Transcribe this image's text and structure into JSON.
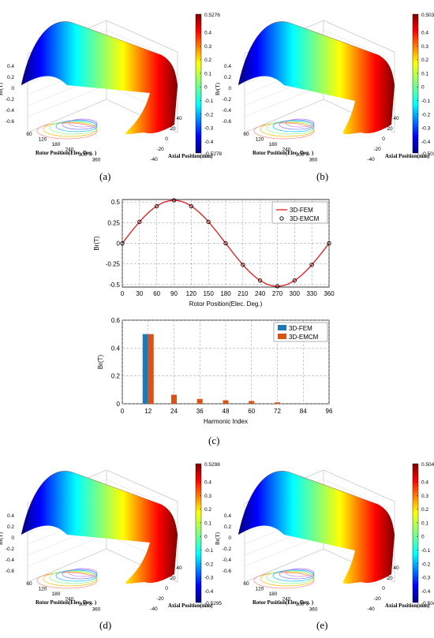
{
  "colors": {
    "fem": "#e41a1c",
    "fem_bar": "#1f77b4",
    "emcm_bar": "#d95319",
    "grid": "#999999"
  },
  "panels": {
    "a": {
      "label": "(a)",
      "cbar_max": "0.5276",
      "cbar_min": "-0.5278"
    },
    "b": {
      "label": "(b)",
      "cbar_max": "0.5039",
      "cbar_min": "-0.5039"
    },
    "c": {
      "label": "(c)"
    },
    "d": {
      "label": "(d)",
      "cbar_max": "0.5298",
      "cbar_min": "-0.5295"
    },
    "e": {
      "label": "(e)",
      "cbar_max": "0.5041",
      "cbar_min": "-0.5041"
    }
  },
  "surface_common": {
    "zlabel": "Br(T)",
    "xlabel": "Rotor Position(Elec. Deg. )",
    "ylabel": "Axial Position(mm)",
    "z_ticks": [
      "0.4",
      "0.2",
      "0",
      "-0.2",
      "-0.4",
      "-0.6"
    ],
    "x_ticks": [
      "60",
      "120",
      "180",
      "240",
      "300",
      "360"
    ],
    "y_ticks": [
      "-40",
      "-20",
      "0",
      "20",
      "40"
    ],
    "cbar_ticks": [
      "0.4",
      "0.3",
      "0.2",
      "0.1",
      "0",
      "-0.1",
      "-0.2",
      "-0.3",
      "-0.4"
    ]
  },
  "chart_data": [
    {
      "type": "line",
      "xlabel": "Rotor Position(Elec. Deg.)",
      "ylabel": "Br(T)",
      "xlim": [
        0,
        360
      ],
      "ylim": [
        -0.53,
        0.53
      ],
      "x_ticks": [
        0,
        30,
        60,
        90,
        120,
        150,
        180,
        210,
        240,
        270,
        300,
        330,
        360
      ],
      "y_ticks": [
        -0.5,
        -0.25,
        0,
        0.25,
        0.5
      ],
      "y_tick_labels": [
        "-0.5",
        "-0.25",
        "0",
        "0.25",
        "0.5"
      ],
      "grid": true,
      "legend": "top-right",
      "series": [
        {
          "name": "3D-FEM",
          "style": "line",
          "amplitude": 0.52
        },
        {
          "name": "3D-EMCM",
          "style": "markers",
          "x": [
            0,
            30,
            60,
            90,
            120,
            150,
            180,
            210,
            240,
            270,
            300,
            330,
            360
          ],
          "y": [
            0,
            0.26,
            0.45,
            0.52,
            0.45,
            0.26,
            0,
            -0.26,
            -0.45,
            -0.52,
            -0.45,
            -0.26,
            0
          ]
        }
      ]
    },
    {
      "type": "bar",
      "xlabel": "Harmonic Index",
      "ylabel": "Br(T)",
      "xlim": [
        0,
        96
      ],
      "ylim": [
        0,
        0.6
      ],
      "x_ticks": [
        0,
        12,
        24,
        36,
        48,
        60,
        72,
        84,
        96
      ],
      "y_ticks": [
        0,
        0.2,
        0.4,
        0.6
      ],
      "grid": true,
      "legend": "top-right",
      "categories": [
        12,
        24,
        36,
        48,
        60,
        72
      ],
      "series": [
        {
          "name": "3D-FEM",
          "values": [
            0.5,
            0,
            0,
            0,
            0,
            0
          ]
        },
        {
          "name": "3D-EMCM",
          "values": [
            0.5,
            0.065,
            0.035,
            0.025,
            0.02,
            0.01
          ]
        }
      ]
    }
  ]
}
